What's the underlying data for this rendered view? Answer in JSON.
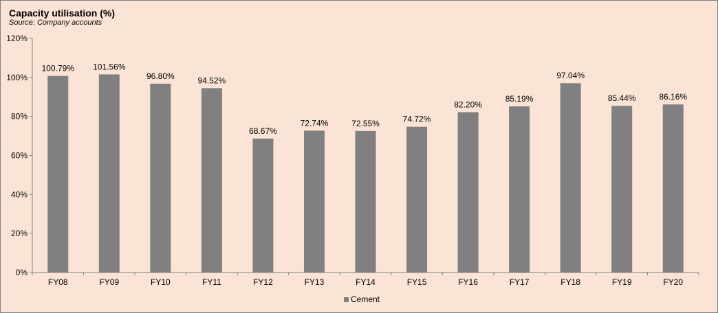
{
  "title": "Capacity utilisation (%)",
  "subtitle": "Source: Company accounts",
  "colors": {
    "bar": "#808080",
    "background": "#fbe4d5",
    "axis": "#7f7f7f"
  },
  "chart_data": {
    "type": "bar",
    "title": "Capacity utilisation (%)",
    "subtitle": "Source: Company accounts",
    "categories": [
      "FY08",
      "FY09",
      "FY10",
      "FY11",
      "FY12",
      "FY13",
      "FY14",
      "FY15",
      "FY16",
      "FY17",
      "FY18",
      "FY19",
      "FY20"
    ],
    "series": [
      {
        "name": "Cement",
        "values": [
          100.79,
          101.56,
          96.8,
          94.52,
          68.67,
          72.74,
          72.55,
          74.72,
          82.2,
          85.19,
          97.04,
          85.44,
          86.16
        ],
        "labels": [
          "100.79%",
          "101.56%",
          "96.80%",
          "94.52%",
          "68.67%",
          "72.74%",
          "72.55%",
          "74.72%",
          "82.20%",
          "85.19%",
          "97.04%",
          "85.44%",
          "86.16%"
        ]
      }
    ],
    "yticks": [
      "0%",
      "20%",
      "40%",
      "60%",
      "80%",
      "100%",
      "120%"
    ],
    "ylim": [
      0,
      120
    ],
    "grid": false,
    "legend": "bottom-center"
  }
}
